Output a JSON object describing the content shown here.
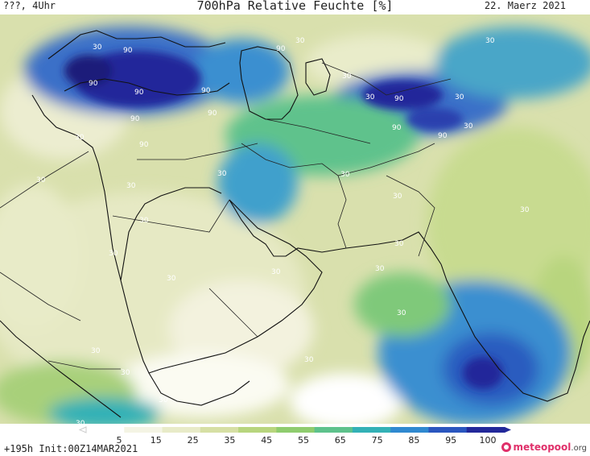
{
  "header": {
    "valid_time": "???, 4Uhr",
    "title": "700hPa Relative Feuchte [%]",
    "date": "22. Maerz 2021"
  },
  "footer": {
    "run_info": "+195h Init:00Z14MAR2021",
    "brand_name": "meteopool",
    "brand_tld": ".org"
  },
  "colorbar": {
    "labels": [
      "5",
      "15",
      "25",
      "35",
      "45",
      "55",
      "65",
      "75",
      "85",
      "95",
      "100"
    ],
    "colors": [
      "#ffffff",
      "#f4f4e4",
      "#e8ebc8",
      "#d6dfa4",
      "#b8d57e",
      "#8fcc6e",
      "#5ec28c",
      "#33b1b6",
      "#2f89d0",
      "#2a56bf",
      "#22289a"
    ]
  },
  "contour_labels": [
    "30",
    "90",
    "90",
    "90",
    "90",
    "90",
    "90",
    "90",
    "90",
    "90",
    "90",
    "90",
    "30",
    "30",
    "30",
    "30",
    "30",
    "30",
    "30",
    "30",
    "30",
    "30",
    "30",
    "30",
    "30",
    "30",
    "30",
    "30",
    "30",
    "30",
    "30",
    "30",
    "30",
    "30",
    "30",
    "30",
    "30"
  ]
}
